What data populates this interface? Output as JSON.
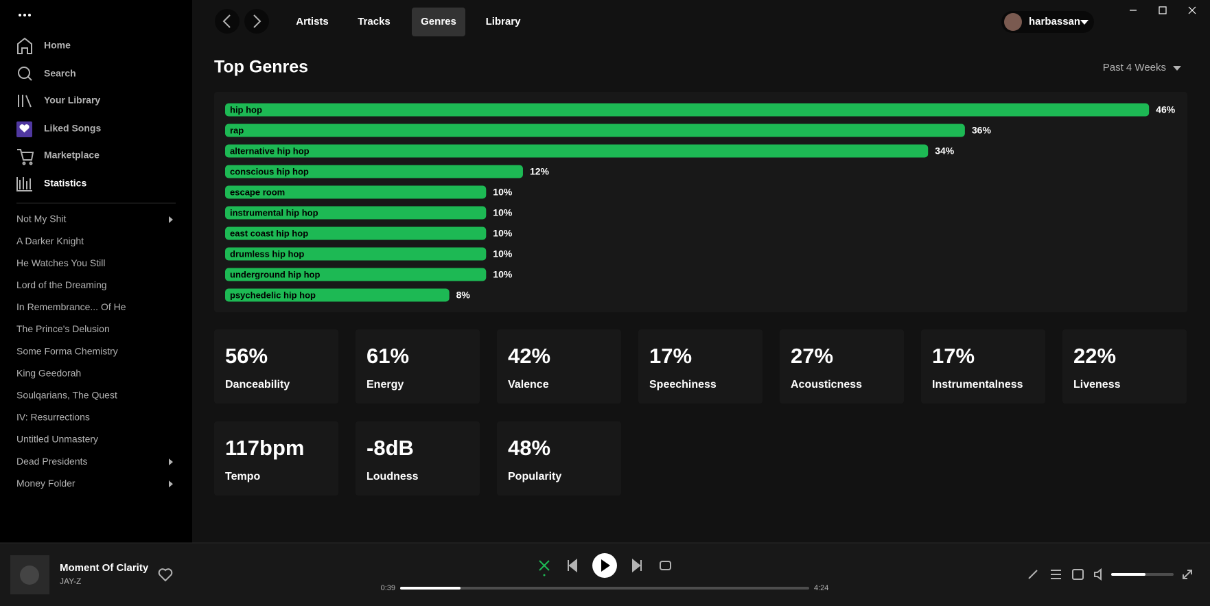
{
  "sidebar": {
    "nav": [
      "Home",
      "Search",
      "Your Library",
      "Liked Songs",
      "Marketplace",
      "Statistics"
    ],
    "playlists": [
      "Not My Shit",
      "A Darker Knight",
      "He Watches You Still",
      "Lord of the Dreaming",
      "In Remembrance... Of He",
      "The Prince's Delusion",
      "Some Forma Chemistry",
      "King Geedorah",
      "Soulqarians, The Quest",
      "IV: Resurrections",
      "Untitled Unmastery",
      "Dead Presidents",
      "Money Folder"
    ]
  },
  "topbar": {
    "tabs": [
      "Artists",
      "Tracks",
      "Genres",
      "Library"
    ],
    "user": "harbassan"
  },
  "header": {
    "title": "Top Genres",
    "range": "Past 4 Weeks"
  },
  "chart_data": {
    "type": "bar",
    "orientation": "horizontal",
    "color": "#1db954",
    "categories": [
      "hip hop",
      "rap",
      "alternative hip hop",
      "conscious hip hop",
      "escape room",
      "instrumental hip hop",
      "east coast hip hop",
      "drumless hip hop",
      "underground hip hop",
      "psychedelic hip hop"
    ],
    "values": [
      46,
      36,
      34,
      12,
      10,
      10,
      10,
      10,
      10,
      8
    ],
    "value_labels": [
      "46%",
      "36%",
      "34%",
      "12%",
      "10%",
      "10%",
      "10%",
      "10%",
      "10%",
      "8%"
    ]
  },
  "stats": [
    {
      "value": "56%",
      "label": "Danceability"
    },
    {
      "value": "61%",
      "label": "Energy"
    },
    {
      "value": "42%",
      "label": "Valence"
    },
    {
      "value": "17%",
      "label": "Speechiness"
    },
    {
      "value": "27%",
      "label": "Acousticness"
    },
    {
      "value": "17%",
      "label": "Instrumentalness"
    },
    {
      "value": "22%",
      "label": "Liveness"
    },
    {
      "value": "117bpm",
      "label": "Tempo"
    },
    {
      "value": "-8dB",
      "label": "Loudness"
    },
    {
      "value": "48%",
      "label": "Popularity"
    }
  ],
  "player": {
    "title": "Moment Of Clarity",
    "artist": "JAY-Z",
    "elapsed": "0:39",
    "duration": "4:24"
  }
}
